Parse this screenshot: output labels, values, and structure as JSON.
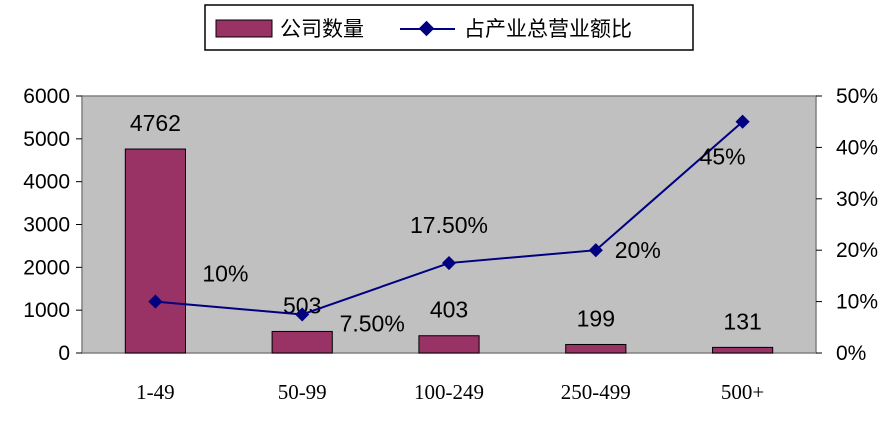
{
  "chart_data": {
    "type": "bar+line",
    "categories": [
      "1-49",
      "50-99",
      "100-249",
      "250-499",
      "500+"
    ],
    "series": [
      {
        "name": "公司数量",
        "type": "bar",
        "axis": "left",
        "values": [
          4762,
          503,
          403,
          199,
          131
        ],
        "labels": [
          "4762",
          "503",
          "403",
          "199",
          "131"
        ],
        "color": "#993366"
      },
      {
        "name": "占产业总营业额比",
        "type": "line",
        "axis": "right",
        "values": [
          10,
          7.5,
          17.5,
          20,
          45
        ],
        "labels": [
          "10%",
          "7.50%",
          "17.50%",
          "20%",
          "45%"
        ],
        "color": "#000080"
      }
    ],
    "y_left": {
      "ticks": [
        "0",
        "1000",
        "2000",
        "3000",
        "4000",
        "5000",
        "6000"
      ],
      "range": [
        0,
        6000
      ]
    },
    "y_right": {
      "ticks": [
        "0%",
        "10%",
        "20%",
        "30%",
        "40%",
        "50%"
      ],
      "range": [
        0,
        50
      ]
    },
    "plot_background": "#c0c0c0",
    "legend_position": "top",
    "grid": false
  }
}
